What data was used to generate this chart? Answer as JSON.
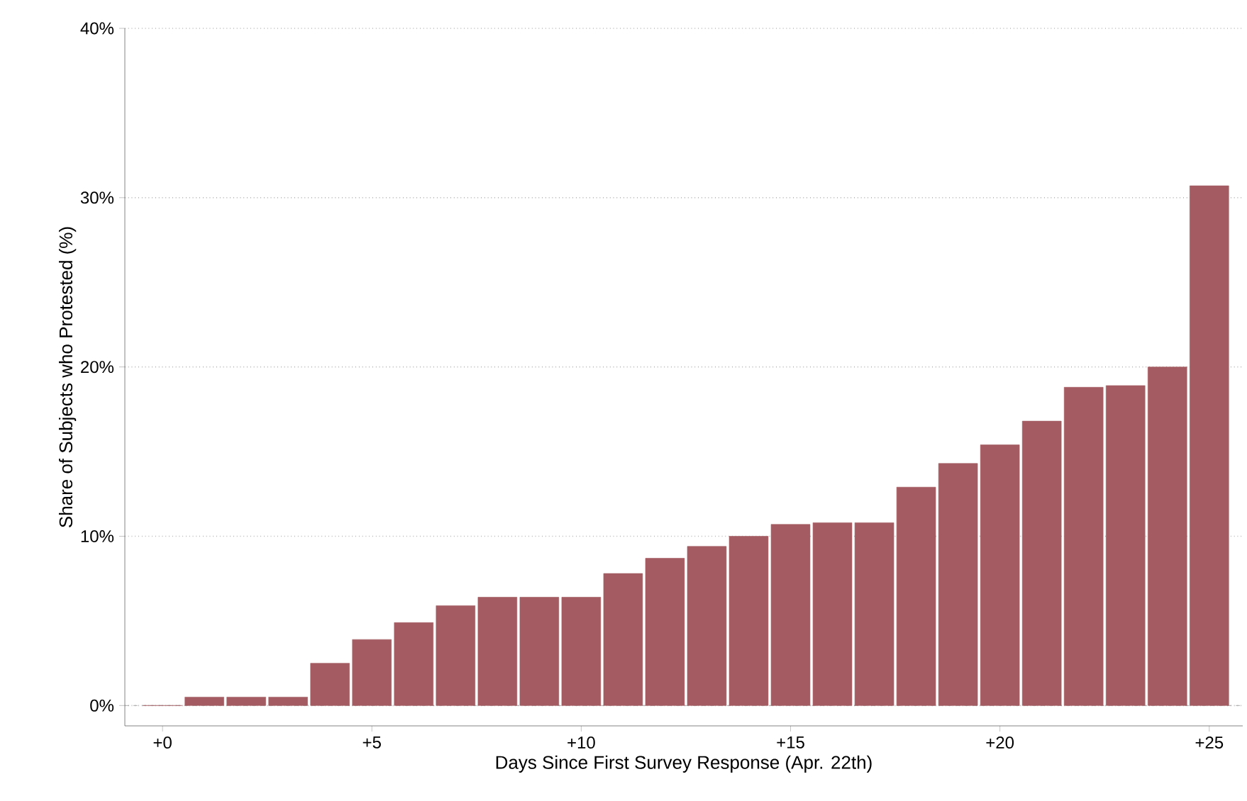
{
  "chart_data": {
    "type": "bar",
    "xlabel": "Days Since First Survey Response (Apr. 22th)",
    "ylabel": "Share of Subjects who Protested (%)",
    "x": [
      0,
      1,
      2,
      3,
      4,
      5,
      6,
      7,
      8,
      9,
      10,
      11,
      12,
      13,
      14,
      15,
      16,
      17,
      18,
      19,
      20,
      21,
      22,
      23,
      24,
      25
    ],
    "values": [
      0,
      0.5,
      0.5,
      0.5,
      2.5,
      3.9,
      4.9,
      5.9,
      6.4,
      6.4,
      6.4,
      7.8,
      8.7,
      9.4,
      10.0,
      10.7,
      10.8,
      10.8,
      12.9,
      14.3,
      15.4,
      16.8,
      18.8,
      18.9,
      20.0,
      30.7
    ],
    "color": "#a45c62",
    "xlim": [
      -0.9,
      25.8
    ],
    "ylim": [
      -1.2,
      40
    ],
    "xticks": [
      {
        "value": 0,
        "label": "+0"
      },
      {
        "value": 5,
        "label": "+5"
      },
      {
        "value": 10,
        "label": "+10"
      },
      {
        "value": 15,
        "label": "+15"
      },
      {
        "value": 20,
        "label": "+20"
      },
      {
        "value": 25,
        "label": "+25"
      }
    ],
    "yticks": [
      {
        "value": 0,
        "label": "0%"
      },
      {
        "value": 10,
        "label": "10%"
      },
      {
        "value": 20,
        "label": "20%"
      },
      {
        "value": 30,
        "label": "30%"
      },
      {
        "value": 40,
        "label": "40%"
      }
    ],
    "ref_lines": [
      {
        "axis": "y",
        "value": 0,
        "color": "#999999",
        "line_style": "dashed"
      }
    ],
    "grid": "y"
  }
}
